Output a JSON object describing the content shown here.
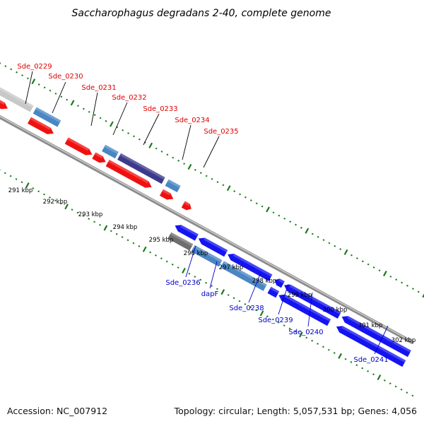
{
  "title": "Saccharophagus degradans 2-40, complete genome",
  "footer": {
    "accession": "Accession: NC_007912",
    "summary": "Topology: circular; Length: 5,057,531 bp; Genes: 4,056"
  },
  "colors": {
    "forward_cds": "#f01010",
    "reverse_cds": "#1414f0",
    "feature_light": "#4a86c4",
    "feature_dark": "#3c3a8c",
    "feature_grey": "#c8c8c8",
    "feature_darkgrey": "#6e6e6e",
    "backbone": "#8c8c8c",
    "tick_green": "#1a7a1a",
    "label_forward": "#e00000",
    "label_reverse": "#0000c8"
  },
  "ruler": {
    "unit": "kbp",
    "labels": [
      "291 kbp",
      "292 kbp",
      "293 kbp",
      "294 kbp",
      "295 kbp",
      "296 kbp",
      "297 kbp",
      "298 kbp",
      "299 kbp",
      "300 kbp",
      "301 kbp",
      "302 kbp"
    ]
  },
  "top_labels": [
    "Sde_0229",
    "Sde_0230",
    "Sde_0231",
    "Sde_0232",
    "Sde_0233",
    "Sde_0234",
    "Sde_0235"
  ],
  "bottom_labels": [
    "Sde_0236",
    "dapF",
    "Sde_0238",
    "Sde_0239",
    "Sde_0240",
    "Sde_0241"
  ]
}
